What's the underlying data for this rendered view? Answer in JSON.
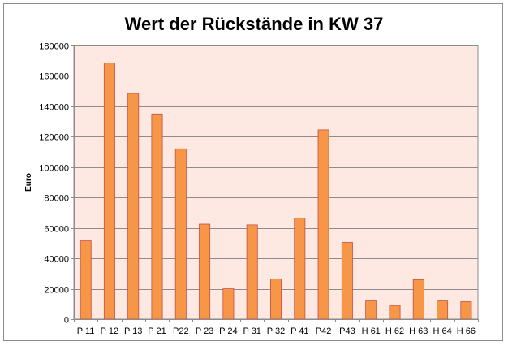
{
  "chart_data": {
    "type": "bar",
    "title": "Wert der Rückstände in KW 37",
    "ylabel": "Euro",
    "xlabel": "",
    "ylim": [
      0,
      180000
    ],
    "yticks": [
      0,
      20000,
      40000,
      60000,
      80000,
      100000,
      120000,
      140000,
      160000,
      180000
    ],
    "grid": true,
    "legend": "none",
    "categories": [
      "P 11",
      "P 12",
      "P 13",
      "P 21",
      "P22",
      "P 23",
      "P 24",
      "P 31",
      "P 32",
      "P 41",
      "P42",
      "P43",
      "H 61",
      "H 62",
      "H 63",
      "H 64",
      "H 66"
    ],
    "values": [
      51500,
      168500,
      148500,
      135000,
      112000,
      62500,
      20000,
      62000,
      26500,
      66500,
      124500,
      50500,
      12500,
      9000,
      26000,
      12500,
      11500
    ],
    "colors": {
      "bar_fill": "#f79646",
      "bar_stroke": "#c0504d",
      "plot_bg": "#fde9e1",
      "grid": "#8c8c8c"
    }
  }
}
